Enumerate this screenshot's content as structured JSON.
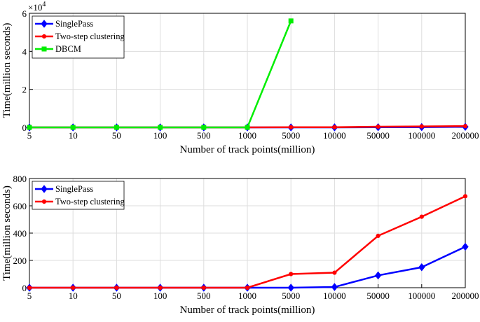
{
  "chart_data": [
    {
      "type": "line",
      "categories": [
        "5",
        "10",
        "50",
        "100",
        "500",
        "1000",
        "5000",
        "10000",
        "50000",
        "100000",
        "200000"
      ],
      "xlabel": "Number of track points(million)",
      "ylabel": "Time(million seconds)",
      "ylim": [
        0,
        60000
      ],
      "yticks": [
        0,
        20000,
        40000,
        60000
      ],
      "ytick_labels": [
        "0",
        "2",
        "4",
        "6"
      ],
      "y_exponent_label": "×10",
      "y_exponent_power": "4",
      "grid": true,
      "legend_position": "top-left",
      "series": [
        {
          "name": "SinglePass",
          "color": "#0000ff",
          "marker": "diamond",
          "values": [
            0,
            0,
            0,
            0,
            0,
            0,
            0,
            5,
            90,
            150,
            300
          ]
        },
        {
          "name": "Two-step clustering",
          "color": "#ff0000",
          "marker": "dot",
          "values": [
            0,
            0,
            0,
            0,
            0,
            0,
            100,
            110,
            380,
            520,
            670
          ]
        },
        {
          "name": "DBCM",
          "color": "#00ee00",
          "marker": "square",
          "values": [
            0,
            0,
            0,
            0,
            0,
            0,
            56000,
            null,
            null,
            null,
            null
          ]
        }
      ]
    },
    {
      "type": "line",
      "categories": [
        "5",
        "10",
        "50",
        "100",
        "500",
        "1000",
        "5000",
        "10000",
        "50000",
        "100000",
        "200000"
      ],
      "xlabel": "Number of track points(million)",
      "ylabel": "Time(million seconds)",
      "ylim": [
        0,
        800
      ],
      "yticks": [
        0,
        200,
        400,
        600,
        800
      ],
      "ytick_labels": [
        "0",
        "200",
        "400",
        "600",
        "800"
      ],
      "grid": true,
      "legend_position": "top-left",
      "series": [
        {
          "name": "SinglePass",
          "color": "#0000ff",
          "marker": "diamond",
          "values": [
            0,
            0,
            0,
            0,
            0,
            0,
            0,
            5,
            90,
            150,
            300
          ]
        },
        {
          "name": "Two-step clustering",
          "color": "#ff0000",
          "marker": "dot",
          "values": [
            0,
            0,
            0,
            0,
            0,
            0,
            100,
            110,
            380,
            520,
            670
          ]
        }
      ]
    }
  ]
}
